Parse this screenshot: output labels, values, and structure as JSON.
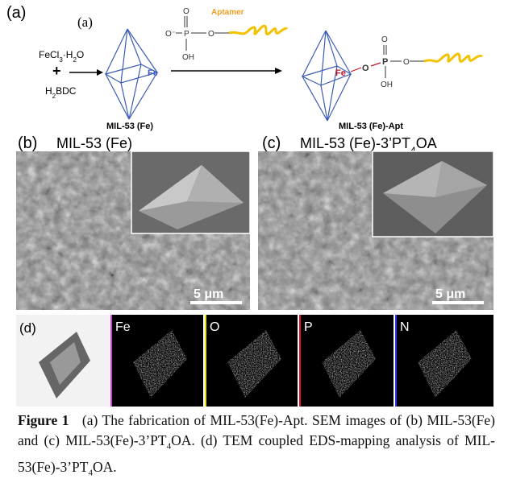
{
  "panel_a": {
    "label": "(a)",
    "inner_label": "(a)",
    "reactant1": [
      "FeCl",
      "3",
      "·H",
      "2",
      "O"
    ],
    "plus": "+",
    "reactant2": [
      "H",
      "2",
      "BDC"
    ],
    "fe_site": "Fe",
    "aptamer": "Aptamer",
    "phosphate": {
      "o_top": "O",
      "o_minus": "O⁻",
      "p": "P",
      "o_right": "O",
      "oh": "OH"
    },
    "product1": "MIL-53 (Fe)",
    "linked": {
      "fe": "Fe",
      "o1": "O",
      "p": "P",
      "o_top": "O",
      "o_right": "O",
      "oh": "OH"
    },
    "product2": "MIL-53 (Fe)-Apt"
  },
  "panel_b": {
    "label": "(b)",
    "title": "MIL-53 (Fe)",
    "scale": "5 μm"
  },
  "panel_c": {
    "label": "(c)",
    "title": [
      "MIL-53 (Fe)-3’PT",
      "4",
      "OA"
    ],
    "scale": "5 μm"
  },
  "panel_d": {
    "label": "(d)",
    "maps": [
      "Fe",
      "O",
      "P",
      "N"
    ]
  },
  "caption": {
    "label": "Figure 1",
    "text": [
      "(a) The fabrication of MIL-53(Fe)-Apt. SEM images of (b) MIL-53(Fe) and (c) MIL-53(Fe)-3’PT",
      "4",
      "OA. (d) TEM coupled EDS-mapping analysis of MIL-53(Fe)-3’PT",
      "4",
      "OA."
    ]
  }
}
